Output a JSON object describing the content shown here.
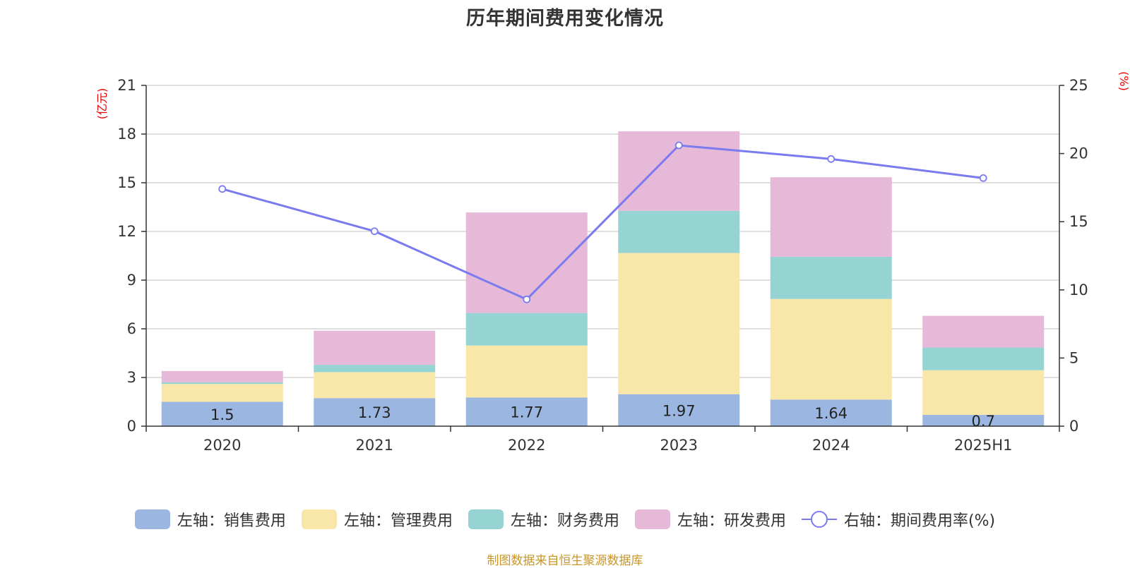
{
  "title": "历年期间费用变化情况",
  "source": "制图数据来自恒生聚源数据库",
  "colors": {
    "sales": "#9bb7e1",
    "admin": "#f8e7a8",
    "finance": "#96d3d3",
    "rnd": "#e7b9d8",
    "rate": "#7b7bf0",
    "grid": "#cccccc",
    "axis": "#333333",
    "unit": "#e60000"
  },
  "chart_data": {
    "type": "bar",
    "stacked": true,
    "title": "历年期间费用变化情况",
    "categories": [
      "2020",
      "2021",
      "2022",
      "2023",
      "2024",
      "2025H1"
    ],
    "left_axis": {
      "unit": "(亿元)",
      "ylim": [
        0,
        21
      ],
      "ticks": [
        0,
        3,
        6,
        9,
        12,
        15,
        18,
        21
      ]
    },
    "right_axis": {
      "unit": "(%)",
      "ylim": [
        0,
        25
      ],
      "ticks": [
        0,
        5,
        10,
        15,
        20,
        25
      ]
    },
    "grid": true,
    "legend_position": "bottom",
    "series": [
      {
        "name": "左轴：销售费用",
        "key": "sales",
        "type": "bar",
        "axis": "left",
        "values": [
          1.5,
          1.73,
          1.77,
          1.97,
          1.64,
          0.7
        ],
        "show_labels": true
      },
      {
        "name": "左轴：管理费用",
        "key": "admin",
        "type": "bar",
        "axis": "left",
        "values": [
          1.1,
          1.6,
          3.2,
          8.7,
          6.2,
          2.75
        ]
      },
      {
        "name": "左轴：财务费用",
        "key": "finance",
        "type": "bar",
        "axis": "left",
        "values": [
          0.1,
          0.45,
          2.0,
          2.6,
          2.6,
          1.4
        ]
      },
      {
        "name": "左轴：研发费用",
        "key": "rnd",
        "type": "bar",
        "axis": "left",
        "values": [
          0.7,
          2.1,
          6.2,
          4.9,
          4.9,
          1.95
        ]
      },
      {
        "name": "右轴：期间费用率(%)",
        "key": "rate",
        "type": "line",
        "axis": "right",
        "values": [
          17.4,
          14.3,
          9.3,
          20.6,
          19.6,
          18.2
        ]
      }
    ]
  }
}
